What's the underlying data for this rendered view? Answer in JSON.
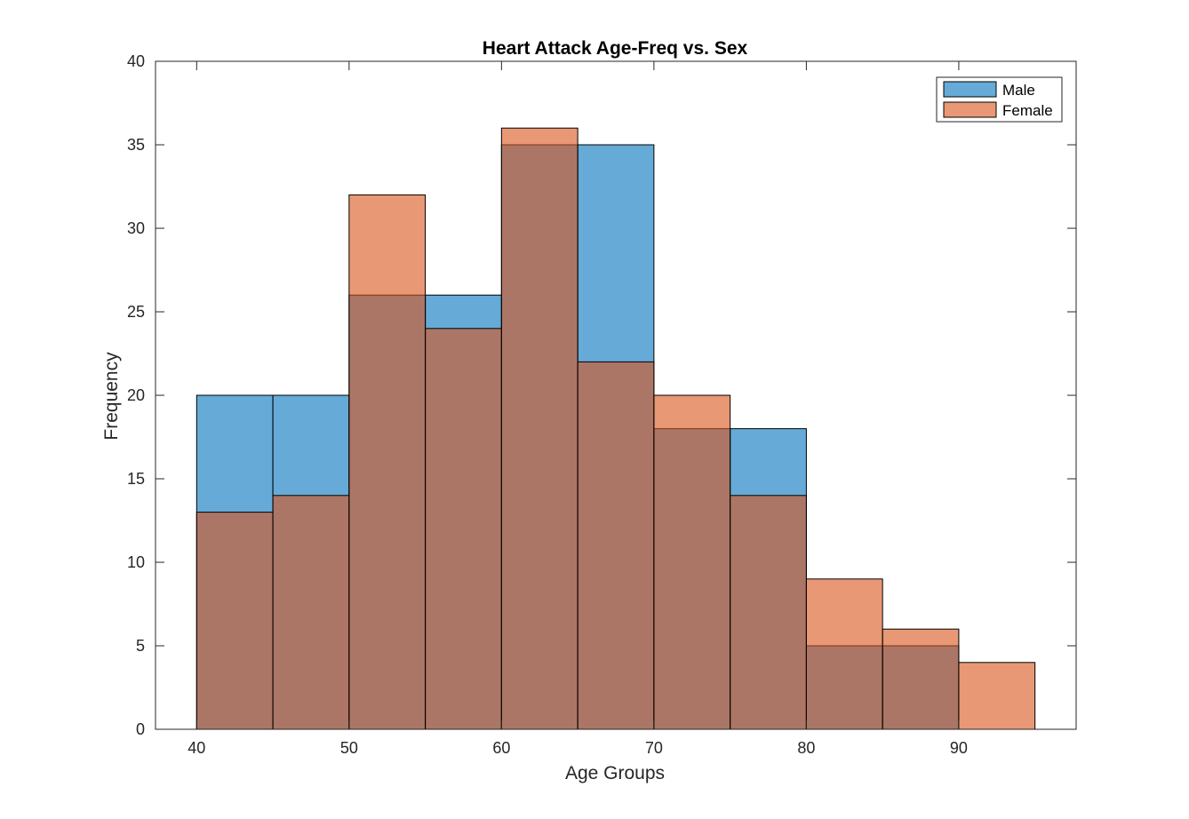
{
  "chart_data": {
    "type": "histogram",
    "title": "Heart Attack Age-Freq vs. Sex",
    "xlabel": "Age Groups",
    "ylabel": "Frequency",
    "xlim": [
      37.3,
      97.7
    ],
    "ylim": [
      0,
      40
    ],
    "x_ticks": [
      "40",
      "50",
      "60",
      "70",
      "80",
      "90"
    ],
    "x_tick_values": [
      40,
      50,
      60,
      70,
      80,
      90
    ],
    "y_ticks": [
      "0",
      "5",
      "10",
      "15",
      "20",
      "25",
      "30",
      "35",
      "40"
    ],
    "y_tick_values": [
      0,
      5,
      10,
      15,
      20,
      25,
      30,
      35,
      40
    ],
    "bin_edges": [
      40,
      45,
      50,
      55,
      60,
      65,
      70,
      75,
      80,
      85,
      90,
      95
    ],
    "series": [
      {
        "name": "Male",
        "color": "#0072BD",
        "face_alpha": 0.6,
        "values": [
          20,
          20,
          26,
          26,
          35,
          35,
          18,
          18,
          5,
          5,
          0
        ]
      },
      {
        "name": "Female",
        "color": "#D95319",
        "face_alpha": 0.6,
        "values": [
          13,
          14,
          32,
          24,
          36,
          22,
          20,
          14,
          9,
          6,
          4
        ]
      }
    ],
    "legend_position": "top-right",
    "grid": false,
    "box": true
  }
}
